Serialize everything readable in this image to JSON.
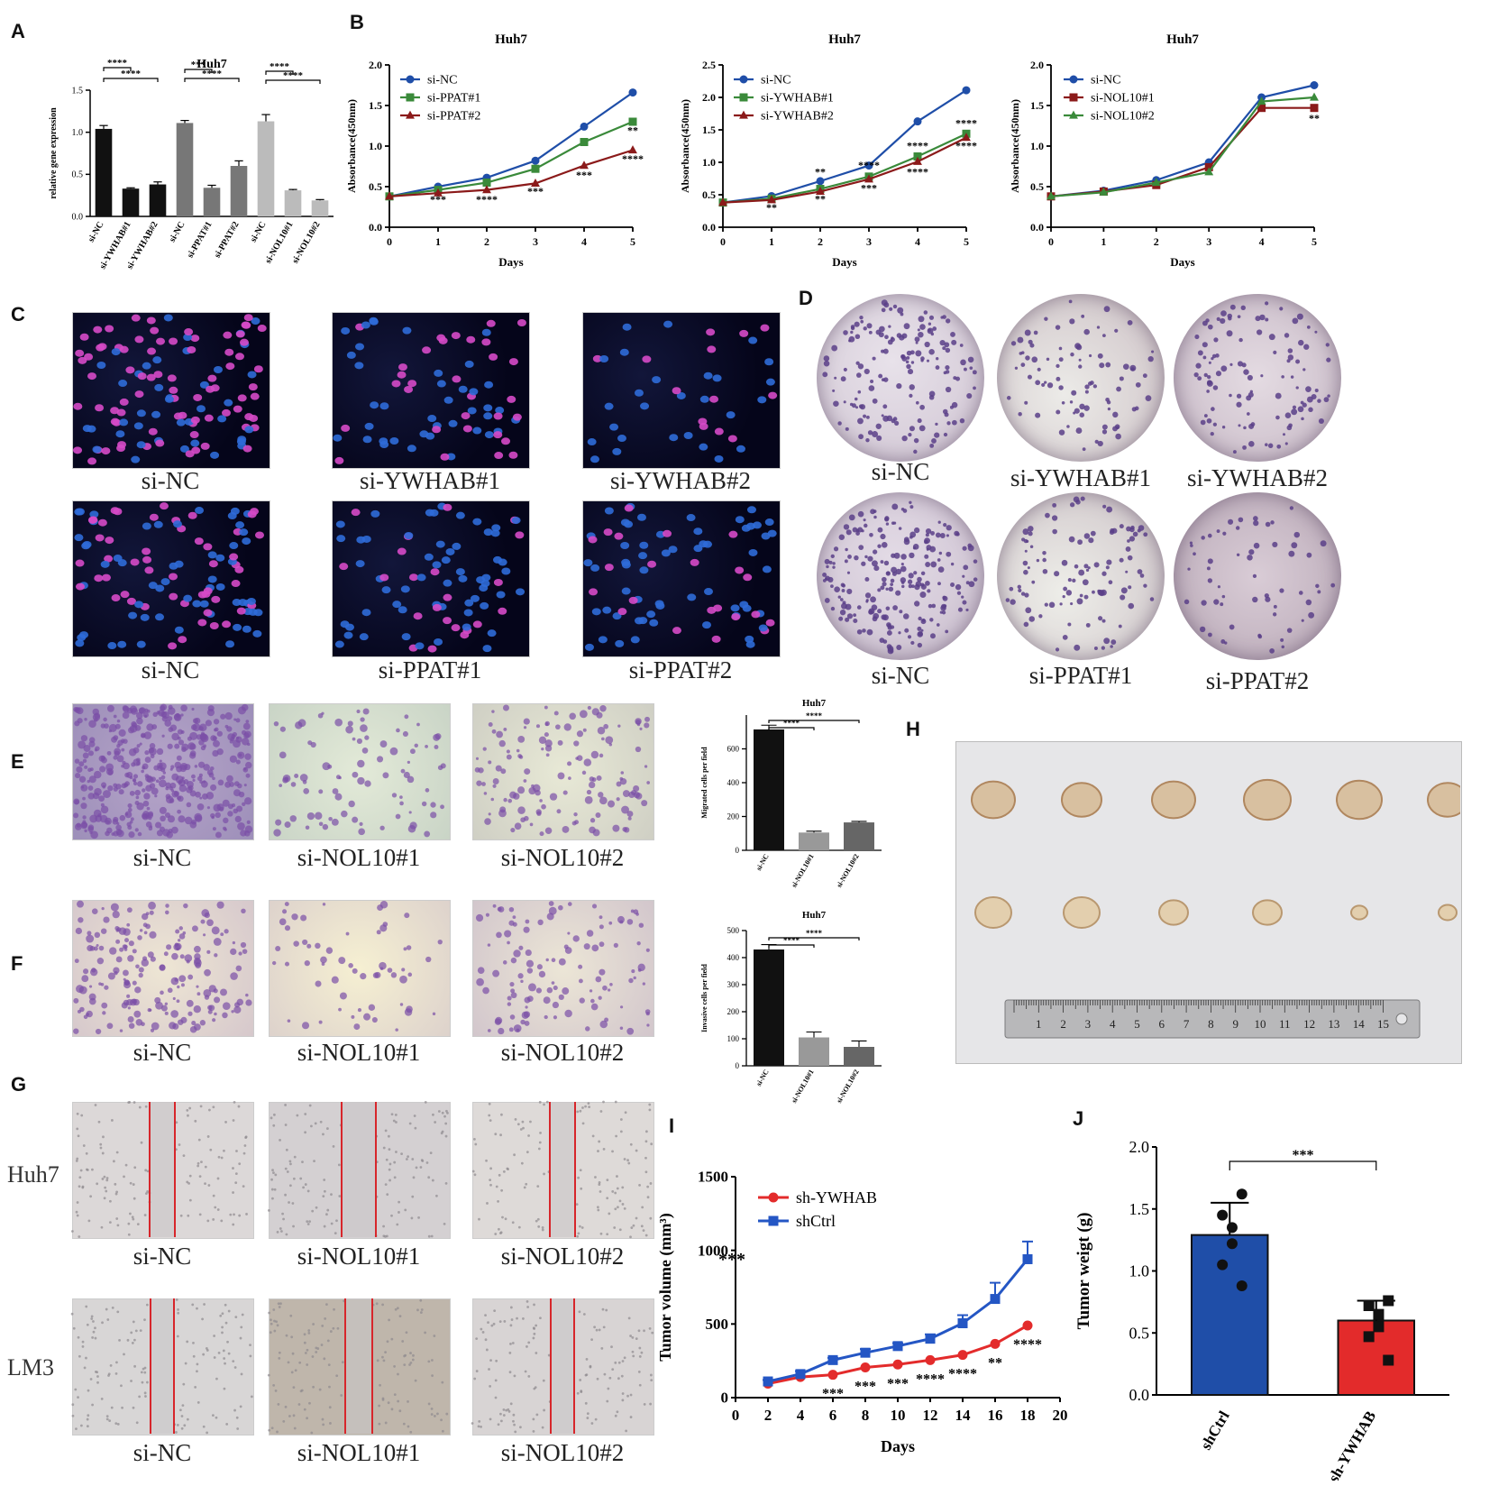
{
  "panels": {
    "A": "A",
    "B": "B",
    "C": "C",
    "D": "D",
    "E": "E",
    "F": "F",
    "G": "G",
    "H": "H",
    "I": "I",
    "J": "J"
  },
  "captions": {
    "C": [
      "si-NC",
      "si-YWHAB#1",
      "si-YWHAB#2",
      "si-NC",
      "si-PPAT#1",
      "si-PPAT#2"
    ],
    "D": [
      "si-NC",
      "si-YWHAB#1",
      "si-YWHAB#2",
      "si-NC",
      "si-PPAT#1",
      "si-PPAT#2"
    ],
    "E": [
      "si-NC",
      "si-NOL10#1",
      "si-NOL10#2"
    ],
    "F": [
      "si-NC",
      "si-NOL10#1",
      "si-NOL10#2"
    ],
    "G": [
      "si-NC",
      "si-NOL10#1",
      "si-NOL10#2",
      "si-NC",
      "si-NOL10#1",
      "si-NOL10#2"
    ],
    "G_rows": [
      "Huh7",
      "LM3"
    ]
  },
  "ruler_numbers": [
    "1",
    "2",
    "3",
    "4",
    "5",
    "6",
    "7",
    "8",
    "9",
    "10",
    "11",
    "12",
    "13",
    "14",
    "15"
  ],
  "chart_data": [
    {
      "id": "A",
      "type": "bar",
      "title": "Huh7",
      "ylabel": "relative gene expression",
      "categories": [
        "si-NC",
        "si-YWHAB#1",
        "si-YWHAB#2",
        "si-NC",
        "si-PPAT#1",
        "si-PPAT#2",
        "si-NC",
        "si-NOL10#1",
        "si-NOL10#2"
      ],
      "values": [
        1.04,
        0.33,
        0.38,
        1.11,
        0.34,
        0.6,
        1.13,
        0.31,
        0.19
      ],
      "errors": [
        0.04,
        0.01,
        0.03,
        0.03,
        0.03,
        0.06,
        0.08,
        0.01,
        0.01
      ],
      "colors": [
        "#111111",
        "#111111",
        "#111111",
        "#777777",
        "#777777",
        "#777777",
        "#bbbbbb",
        "#bbbbbb",
        "#bbbbbb"
      ],
      "ylim": [
        0,
        1.5
      ],
      "yticks": [
        "0.0",
        "0.5",
        "1.0",
        "1.5"
      ],
      "significance": [
        {
          "from": 0,
          "to": 1,
          "label": "****"
        },
        {
          "from": 0,
          "to": 2,
          "label": "****"
        },
        {
          "from": 3,
          "to": 4,
          "label": "***"
        },
        {
          "from": 3,
          "to": 5,
          "label": "****"
        },
        {
          "from": 6,
          "to": 7,
          "label": "****"
        },
        {
          "from": 6,
          "to": 8,
          "label": "****"
        }
      ]
    },
    {
      "id": "B1",
      "type": "line",
      "title": "Huh7",
      "xlabel": "Days",
      "ylabel": "Absorbance(450nm)",
      "x": [
        0,
        1,
        2,
        3,
        4,
        5
      ],
      "xlim": [
        0,
        5
      ],
      "ylim": [
        0,
        2.0
      ],
      "yticks": [
        "0.0",
        "0.5",
        "1.0",
        "1.5",
        "2.0"
      ],
      "series": [
        {
          "name": "si-NC",
          "color": "#1f4ea8",
          "marker": "circle",
          "values": [
            0.38,
            0.5,
            0.61,
            0.82,
            1.24,
            1.66
          ]
        },
        {
          "name": "si-PPAT#1",
          "color": "#3a8a3a",
          "marker": "square",
          "values": [
            0.38,
            0.46,
            0.55,
            0.72,
            1.05,
            1.3
          ]
        },
        {
          "name": "si-PPAT#2",
          "color": "#8b1a1a",
          "marker": "triangle",
          "values": [
            0.38,
            0.42,
            0.46,
            0.54,
            0.76,
            0.95
          ]
        }
      ],
      "annotations": [
        {
          "x": 1,
          "y": 0.3,
          "text": "***"
        },
        {
          "x": 2,
          "y": 0.3,
          "text": "****"
        },
        {
          "x": 3,
          "y": 0.4,
          "text": "***"
        },
        {
          "x": 4,
          "y": 0.6,
          "text": "***"
        },
        {
          "x": 5,
          "y": 1.15,
          "text": "**"
        },
        {
          "x": 5,
          "y": 0.8,
          "text": "****"
        }
      ]
    },
    {
      "id": "B2",
      "type": "line",
      "title": "Huh7",
      "xlabel": "Days",
      "ylabel": "Absorbance(450nm)",
      "x": [
        0,
        1,
        2,
        3,
        4,
        5
      ],
      "xlim": [
        0,
        5
      ],
      "ylim": [
        0,
        2.5
      ],
      "yticks": [
        "0.0",
        "0.5",
        "1.0",
        "1.5",
        "2.0",
        "2.5"
      ],
      "series": [
        {
          "name": "si-NC",
          "color": "#1f4ea8",
          "marker": "circle",
          "values": [
            0.38,
            0.48,
            0.71,
            0.95,
            1.63,
            2.11
          ]
        },
        {
          "name": "si-YWHAB#1",
          "color": "#3a8a3a",
          "marker": "square",
          "values": [
            0.38,
            0.44,
            0.59,
            0.78,
            1.09,
            1.44
          ]
        },
        {
          "name": "si-YWHAB#2",
          "color": "#8b1a1a",
          "marker": "triangle",
          "values": [
            0.38,
            0.42,
            0.55,
            0.74,
            1.01,
            1.38
          ]
        }
      ],
      "annotations": [
        {
          "x": 1,
          "y": 0.25,
          "text": "**"
        },
        {
          "x": 2,
          "y": 0.38,
          "text": "**"
        },
        {
          "x": 2,
          "y": 0.8,
          "text": "**"
        },
        {
          "x": 3,
          "y": 0.55,
          "text": "***"
        },
        {
          "x": 3,
          "y": 0.9,
          "text": "****"
        },
        {
          "x": 4,
          "y": 0.8,
          "text": "****"
        },
        {
          "x": 4,
          "y": 1.2,
          "text": "****"
        },
        {
          "x": 5,
          "y": 1.2,
          "text": "****"
        },
        {
          "x": 5,
          "y": 1.55,
          "text": "****"
        }
      ]
    },
    {
      "id": "B3",
      "type": "line",
      "title": "Huh7",
      "xlabel": "Days",
      "ylabel": "Absorbance(450nm)",
      "x": [
        0,
        1,
        2,
        3,
        4,
        5
      ],
      "xlim": [
        0,
        5
      ],
      "ylim": [
        0,
        2.0
      ],
      "yticks": [
        "0.0",
        "0.5",
        "1.0",
        "1.5",
        "2.0"
      ],
      "series": [
        {
          "name": "si-NC",
          "color": "#1f4ea8",
          "marker": "circle",
          "values": [
            0.38,
            0.45,
            0.58,
            0.8,
            1.6,
            1.75
          ]
        },
        {
          "name": "si-NOL10#1",
          "color": "#8b1a1a",
          "marker": "square",
          "values": [
            0.38,
            0.44,
            0.52,
            0.74,
            1.47,
            1.47
          ]
        },
        {
          "name": "si-NOL10#2",
          "color": "#3a8a3a",
          "marker": "triangle",
          "values": [
            0.38,
            0.43,
            0.55,
            0.68,
            1.55,
            1.6
          ]
        }
      ],
      "annotations": [
        {
          "x": 5,
          "y": 1.3,
          "text": "**"
        }
      ]
    },
    {
      "id": "E",
      "type": "bar",
      "title": "Huh7",
      "ylabel": "Migrated cells per field",
      "categories": [
        "si-NC",
        "si-NOL10#1",
        "si-NOL10#2"
      ],
      "values": [
        715,
        105,
        165
      ],
      "errors": [
        25,
        8,
        6
      ],
      "colors": [
        "#111111",
        "#999999",
        "#666666"
      ],
      "ylim": [
        0,
        800
      ],
      "yticks": [
        "0",
        "200",
        "400",
        "600"
      ],
      "significance": [
        {
          "from": 0,
          "to": 1,
          "label": "****"
        },
        {
          "from": 0,
          "to": 2,
          "label": "****"
        }
      ]
    },
    {
      "id": "F",
      "type": "bar",
      "title": "Huh7",
      "ylabel": "Invasive cells per field",
      "categories": [
        "si-NC",
        "si-NOL10#1",
        "si-NOL10#2"
      ],
      "values": [
        430,
        105,
        70
      ],
      "errors": [
        18,
        20,
        22
      ],
      "colors": [
        "#111111",
        "#999999",
        "#666666"
      ],
      "ylim": [
        0,
        500
      ],
      "yticks": [
        "0",
        "100",
        "200",
        "300",
        "400",
        "500"
      ],
      "significance": [
        {
          "from": 0,
          "to": 1,
          "label": "****"
        },
        {
          "from": 0,
          "to": 2,
          "label": "****"
        }
      ]
    },
    {
      "id": "I",
      "type": "line",
      "xlabel": "Days",
      "ylabel": "Tumor volume (mm³)",
      "x": [
        2,
        4,
        6,
        8,
        10,
        12,
        14,
        16,
        18
      ],
      "xlim": [
        0,
        20
      ],
      "ylim": [
        0,
        1500
      ],
      "xticks": [
        "0",
        "2",
        "4",
        "6",
        "8",
        "10",
        "12",
        "14",
        "16",
        "18",
        "20"
      ],
      "yticks": [
        "0",
        "500",
        "1000",
        "1500"
      ],
      "series": [
        {
          "name": "sh-YWHAB",
          "color": "#e32b2b",
          "marker": "circle",
          "values": [
            95,
            140,
            155,
            205,
            225,
            255,
            290,
            365,
            490
          ]
        },
        {
          "name": "shCtrl",
          "color": "#2456c4",
          "marker": "square",
          "values": [
            110,
            160,
            255,
            305,
            350,
            400,
            505,
            670,
            940
          ]
        }
      ],
      "errors_top": [
        120,
        180,
        270,
        330,
        370,
        430,
        560,
        780,
        1060
      ],
      "annotations": [
        {
          "x": 6,
          "text": "***"
        },
        {
          "x": 8,
          "text": "***"
        },
        {
          "x": 10,
          "text": "***"
        },
        {
          "x": 12,
          "text": "****"
        },
        {
          "x": 14,
          "text": "****"
        },
        {
          "x": 16,
          "text": "**"
        },
        {
          "x": 18,
          "text": "****"
        }
      ],
      "corner_note": "***"
    },
    {
      "id": "J",
      "type": "bar",
      "ylabel": "Tumor weigt (g)",
      "categories": [
        "shCtrl",
        "sh-YWHAB"
      ],
      "values": [
        1.29,
        0.6
      ],
      "errors": [
        0.26,
        0.16
      ],
      "colors": [
        "#1f4ea8",
        "#e32b2b"
      ],
      "ylim": [
        0,
        2.0
      ],
      "yticks": [
        "0.0",
        "0.5",
        "1.0",
        "1.5",
        "2.0"
      ],
      "points": [
        [
          1.62,
          1.45,
          1.35,
          1.22,
          1.05,
          0.88
        ],
        [
          0.76,
          0.72,
          0.65,
          0.55,
          0.47,
          0.28
        ]
      ],
      "significance": [
        {
          "from": 0,
          "to": 1,
          "label": "***"
        }
      ]
    }
  ]
}
